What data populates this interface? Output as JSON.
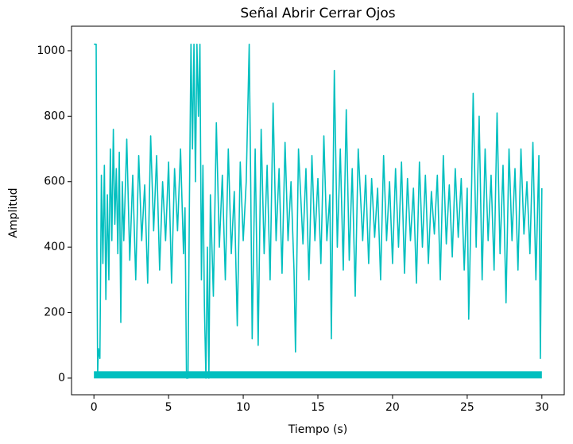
{
  "chart_data": {
    "type": "line",
    "title": "Señal Abrir Cerrar Ojos",
    "x_label": "Tiempo (s)",
    "y_label": "Amplitud",
    "xlim": [
      -1.5,
      31.5
    ],
    "ylim": [
      -51,
      1075
    ],
    "xticks": [
      0,
      5,
      10,
      15,
      20,
      25,
      30
    ],
    "yticks": [
      0,
      200,
      400,
      600,
      800,
      1000
    ],
    "series": [
      {
        "color": "#00bfbf",
        "x": [
          0,
          0.1,
          0.15,
          0.2,
          0.25,
          0.3,
          0.4,
          0.5,
          0.6,
          0.7,
          0.8,
          0.9,
          1.0,
          1.1,
          1.2,
          1.3,
          1.4,
          1.5,
          1.6,
          1.7,
          1.8,
          1.9,
          2.0,
          2.2,
          2.4,
          2.6,
          2.8,
          3.0,
          3.2,
          3.4,
          3.6,
          3.8,
          4.0,
          4.2,
          4.4,
          4.6,
          4.8,
          5.0,
          5.2,
          5.4,
          5.6,
          5.8,
          6.0,
          6.1,
          6.2,
          6.3,
          6.4,
          6.5,
          6.6,
          6.7,
          6.8,
          6.9,
          7.0,
          7.1,
          7.2,
          7.3,
          7.4,
          7.5,
          7.6,
          7.7,
          7.8,
          8.0,
          8.2,
          8.4,
          8.6,
          8.8,
          9.0,
          9.2,
          9.4,
          9.6,
          9.8,
          10.0,
          10.2,
          10.4,
          10.5,
          10.6,
          10.8,
          11.0,
          11.2,
          11.4,
          11.6,
          11.8,
          12.0,
          12.2,
          12.4,
          12.6,
          12.8,
          13.0,
          13.2,
          13.4,
          13.5,
          13.7,
          14.0,
          14.2,
          14.4,
          14.6,
          14.8,
          15.0,
          15.2,
          15.4,
          15.6,
          15.8,
          15.9,
          16.1,
          16.3,
          16.5,
          16.7,
          16.9,
          17.1,
          17.3,
          17.5,
          17.7,
          18.0,
          18.2,
          18.4,
          18.6,
          18.8,
          19.0,
          19.2,
          19.4,
          19.6,
          19.8,
          20.0,
          20.2,
          20.4,
          20.6,
          20.8,
          21.0,
          21.2,
          21.4,
          21.6,
          21.8,
          22.0,
          22.2,
          22.4,
          22.6,
          22.8,
          23.0,
          23.2,
          23.4,
          23.6,
          23.8,
          24.0,
          24.2,
          24.4,
          24.6,
          24.8,
          25.0,
          25.1,
          25.3,
          25.4,
          25.6,
          25.8,
          26.0,
          26.2,
          26.4,
          26.6,
          26.8,
          27.0,
          27.2,
          27.4,
          27.6,
          27.8,
          28.0,
          28.2,
          28.4,
          28.6,
          28.8,
          29.0,
          29.2,
          29.4,
          29.6,
          29.8,
          29.9,
          30
        ],
        "values": [
          1020,
          1020,
          1020,
          400,
          10,
          90,
          60,
          620,
          350,
          650,
          240,
          560,
          300,
          700,
          420,
          760,
          470,
          640,
          380,
          690,
          170,
          600,
          420,
          730,
          360,
          620,
          300,
          680,
          420,
          590,
          290,
          740,
          450,
          680,
          330,
          600,
          420,
          660,
          290,
          640,
          450,
          700,
          380,
          520,
          0,
          0,
          560,
          1020,
          700,
          1020,
          600,
          1020,
          800,
          1020,
          300,
          650,
          220,
          0,
          400,
          0,
          560,
          250,
          780,
          400,
          620,
          300,
          700,
          380,
          570,
          160,
          660,
          420,
          600,
          1020,
          600,
          120,
          700,
          100,
          760,
          380,
          650,
          300,
          840,
          420,
          640,
          320,
          720,
          420,
          600,
          330,
          80,
          700,
          410,
          640,
          300,
          680,
          420,
          610,
          350,
          740,
          420,
          560,
          120,
          940,
          400,
          700,
          330,
          820,
          360,
          640,
          250,
          700,
          420,
          620,
          350,
          610,
          430,
          580,
          300,
          680,
          420,
          600,
          350,
          640,
          400,
          660,
          320,
          610,
          420,
          580,
          290,
          660,
          400,
          620,
          350,
          570,
          440,
          620,
          300,
          680,
          410,
          590,
          370,
          640,
          430,
          610,
          330,
          580,
          180,
          600,
          870,
          400,
          800,
          300,
          700,
          420,
          620,
          330,
          810,
          380,
          650,
          230,
          700,
          420,
          640,
          330,
          700,
          440,
          600,
          380,
          720,
          300,
          680,
          60,
          580
        ]
      },
      {
        "color": "#00bfbf",
        "x": [
          0,
          30
        ],
        "values": [
          10,
          10
        ]
      }
    ]
  }
}
